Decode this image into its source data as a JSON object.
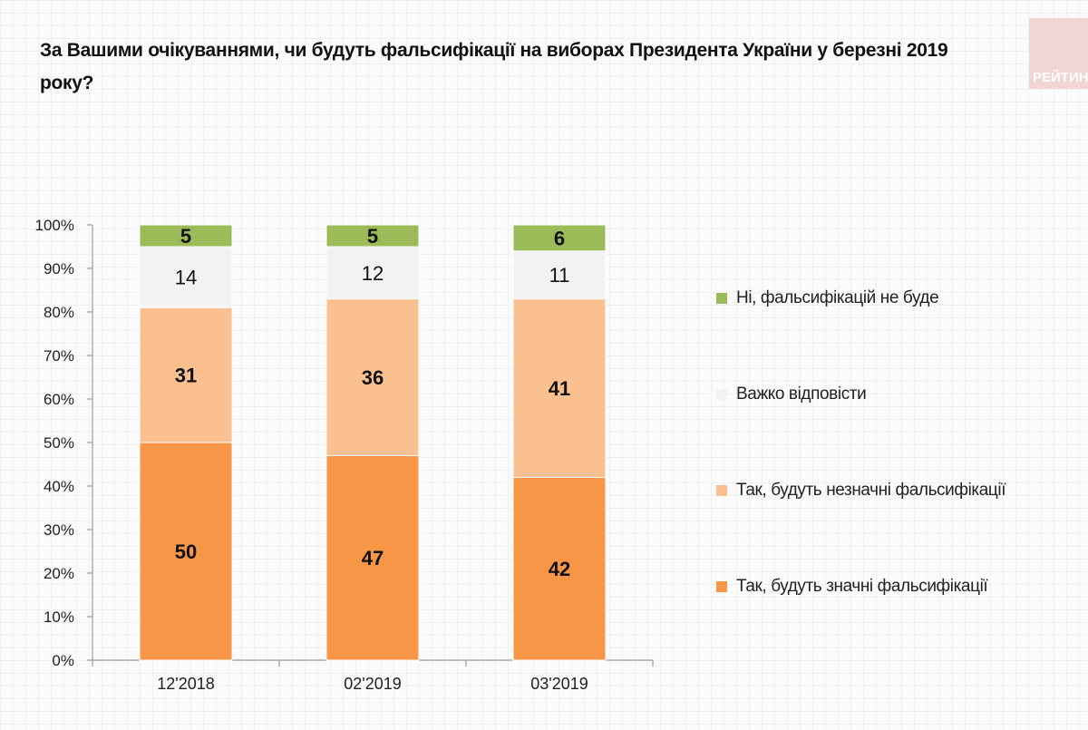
{
  "title": "За Вашими очікуваннями, чи будуть фальсифікації на виборах Президента України у березні 2019 року?",
  "logo_text": "РЕЙТИНГ",
  "chart_data": {
    "type": "bar",
    "stacked": true,
    "categories": [
      "12'2018",
      "02'2019",
      "03'2019"
    ],
    "series": [
      {
        "name": "Так, будуть значні фальсифікації",
        "color": "#f79646",
        "values": [
          50,
          47,
          42
        ]
      },
      {
        "name": "Так, будуть незначні фальсифікації",
        "color": "#fac090",
        "values": [
          31,
          36,
          41
        ]
      },
      {
        "name": "Важко відповісти",
        "color": "#f2f2f2",
        "values": [
          14,
          12,
          11
        ]
      },
      {
        "name": "Ні, фальсифікацій не буде",
        "color": "#9bbb59",
        "values": [
          5,
          5,
          6
        ]
      }
    ],
    "yticks": [
      "0%",
      "10%",
      "20%",
      "30%",
      "40%",
      "50%",
      "60%",
      "70%",
      "80%",
      "90%",
      "100%"
    ],
    "ylim": [
      0,
      100
    ],
    "legend_position": "right",
    "data_labels": true
  }
}
